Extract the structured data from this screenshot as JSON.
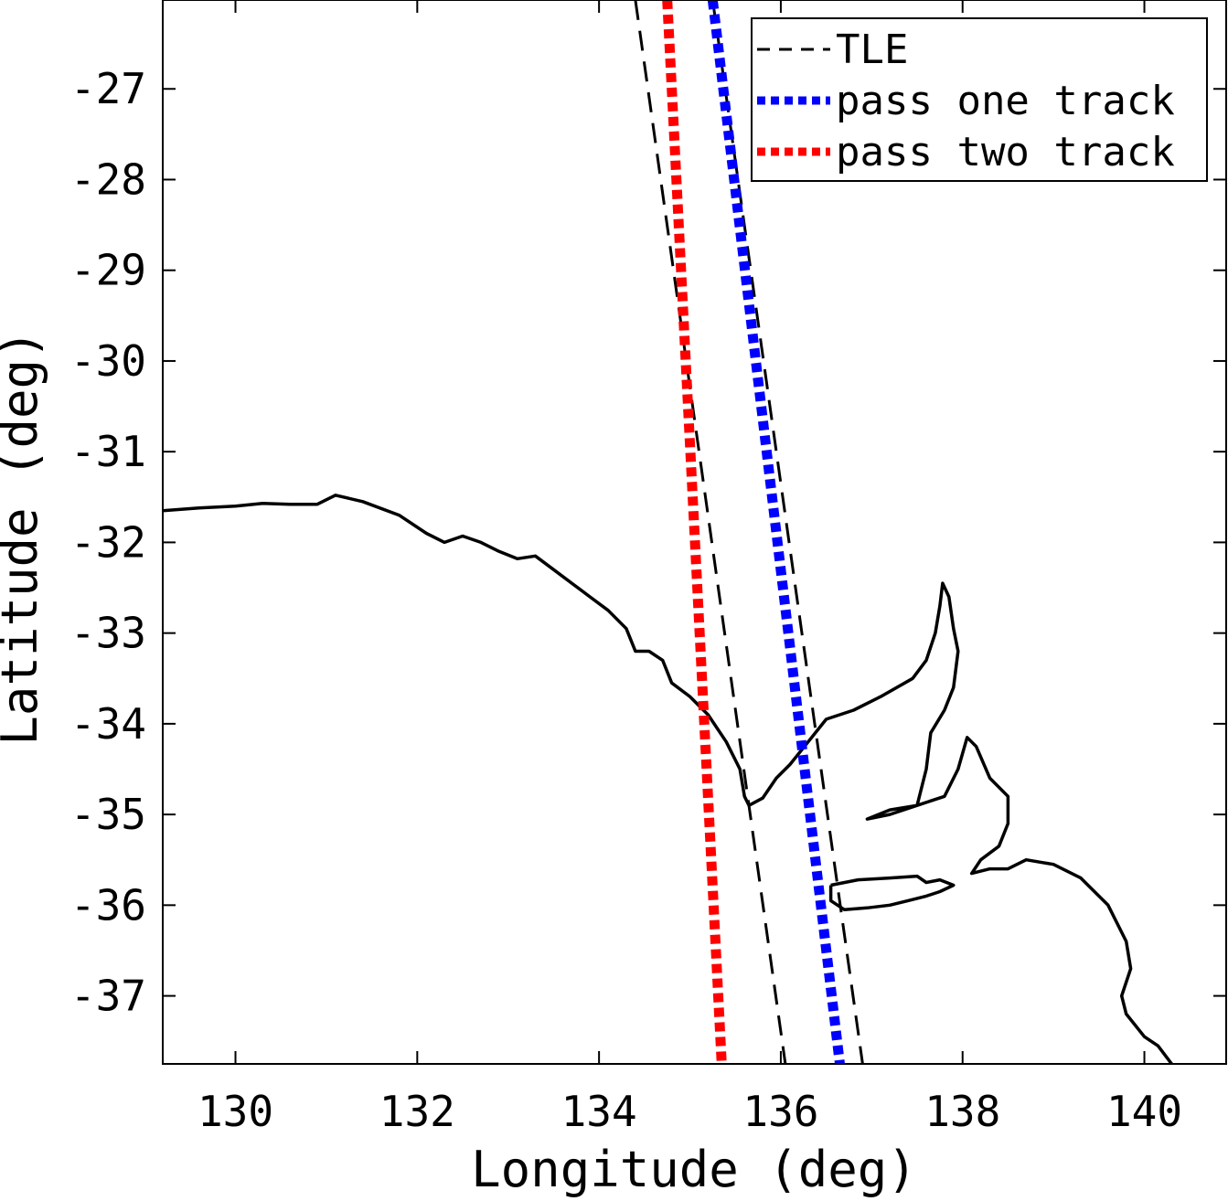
{
  "chart_data": {
    "type": "line",
    "title": "",
    "xlabel": "Longitude (deg)",
    "ylabel": "Latitude (deg)",
    "xlim": [
      129.2,
      140.9
    ],
    "ylim": [
      -37.75,
      -26.02
    ],
    "xticks": [
      130,
      132,
      134,
      136,
      138,
      140
    ],
    "xtick_labels": [
      "130",
      "132",
      "134",
      "136",
      "138",
      "140"
    ],
    "yticks": [
      -27,
      -28,
      -29,
      -30,
      -31,
      -32,
      -33,
      -34,
      -35,
      -36,
      -37
    ],
    "ytick_labels": [
      "-27",
      "-28",
      "-29",
      "-30",
      "-31",
      "-32",
      "-33",
      "-34",
      "-35",
      "-36",
      "-37"
    ],
    "grid": false,
    "legend_position": "top-right",
    "series": [
      {
        "name": "TLE",
        "color": "#000000",
        "style": "dashed",
        "x": [
          134.4,
          136.05
        ],
        "y": [
          -26.02,
          -37.75
        ]
      },
      {
        "name": "",
        "color": "#000000",
        "style": "dashed",
        "x": [
          135.25,
          136.9
        ],
        "y": [
          -26.02,
          -37.75
        ]
      },
      {
        "name": "pass one track",
        "color": "#0000ff",
        "style": "dotted",
        "x": [
          135.25,
          136.65
        ],
        "y": [
          -26.02,
          -37.75
        ]
      },
      {
        "name": "pass two track",
        "color": "#ff0000",
        "style": "dotted",
        "x": [
          134.75,
          135.35
        ],
        "y": [
          -26.02,
          -37.75
        ]
      }
    ],
    "coastline": {
      "name": "coastline",
      "color": "#000000",
      "mainland": [
        [
          129.2,
          -31.65
        ],
        [
          129.6,
          -31.62
        ],
        [
          130.0,
          -31.6
        ],
        [
          130.3,
          -31.57
        ],
        [
          130.6,
          -31.58
        ],
        [
          130.9,
          -31.58
        ],
        [
          131.1,
          -31.48
        ],
        [
          131.4,
          -31.55
        ],
        [
          131.8,
          -31.7
        ],
        [
          132.1,
          -31.9
        ],
        [
          132.3,
          -32.0
        ],
        [
          132.5,
          -31.93
        ],
        [
          132.7,
          -32.0
        ],
        [
          132.9,
          -32.1
        ],
        [
          133.1,
          -32.18
        ],
        [
          133.3,
          -32.15
        ],
        [
          133.5,
          -32.3
        ],
        [
          133.7,
          -32.45
        ],
        [
          133.9,
          -32.6
        ],
        [
          134.1,
          -32.75
        ],
        [
          134.3,
          -32.95
        ],
        [
          134.4,
          -33.2
        ],
        [
          134.55,
          -33.2
        ],
        [
          134.7,
          -33.3
        ],
        [
          134.8,
          -33.55
        ],
        [
          135.0,
          -33.7
        ],
        [
          135.2,
          -33.9
        ],
        [
          135.4,
          -34.2
        ],
        [
          135.55,
          -34.5
        ],
        [
          135.6,
          -34.8
        ],
        [
          135.65,
          -34.9
        ],
        [
          135.8,
          -34.82
        ],
        [
          135.95,
          -34.6
        ],
        [
          136.1,
          -34.45
        ],
        [
          136.3,
          -34.2
        ],
        [
          136.5,
          -33.95
        ],
        [
          136.8,
          -33.85
        ],
        [
          137.1,
          -33.7
        ],
        [
          137.45,
          -33.5
        ],
        [
          137.6,
          -33.3
        ],
        [
          137.7,
          -33.0
        ],
        [
          137.75,
          -32.7
        ],
        [
          137.78,
          -32.45
        ],
        [
          137.85,
          -32.6
        ],
        [
          137.9,
          -32.95
        ],
        [
          137.95,
          -33.2
        ],
        [
          137.9,
          -33.6
        ],
        [
          137.8,
          -33.85
        ],
        [
          137.65,
          -34.1
        ],
        [
          137.6,
          -34.5
        ],
        [
          137.5,
          -34.9
        ],
        [
          137.2,
          -34.95
        ],
        [
          136.95,
          -35.05
        ],
        [
          137.2,
          -35.0
        ],
        [
          137.5,
          -34.9
        ],
        [
          137.8,
          -34.8
        ],
        [
          137.95,
          -34.5
        ],
        [
          138.05,
          -34.15
        ],
        [
          138.15,
          -34.25
        ],
        [
          138.3,
          -34.6
        ],
        [
          138.5,
          -34.8
        ],
        [
          138.5,
          -35.1
        ],
        [
          138.4,
          -35.35
        ],
        [
          138.2,
          -35.5
        ],
        [
          138.1,
          -35.65
        ],
        [
          138.3,
          -35.6
        ],
        [
          138.5,
          -35.6
        ],
        [
          138.7,
          -35.5
        ],
        [
          139.0,
          -35.55
        ],
        [
          139.3,
          -35.7
        ],
        [
          139.6,
          -36.0
        ],
        [
          139.8,
          -36.4
        ],
        [
          139.85,
          -36.7
        ],
        [
          139.75,
          -37.0
        ],
        [
          139.8,
          -37.2
        ],
        [
          140.0,
          -37.45
        ],
        [
          140.15,
          -37.55
        ],
        [
          140.3,
          -37.75
        ]
      ],
      "kangaroo_island": [
        [
          136.55,
          -35.78
        ],
        [
          136.85,
          -35.72
        ],
        [
          137.2,
          -35.7
        ],
        [
          137.5,
          -35.68
        ],
        [
          137.6,
          -35.75
        ],
        [
          137.75,
          -35.72
        ],
        [
          137.9,
          -35.78
        ],
        [
          137.75,
          -35.85
        ],
        [
          137.6,
          -35.9
        ],
        [
          137.4,
          -35.95
        ],
        [
          137.2,
          -36.0
        ],
        [
          136.95,
          -36.03
        ],
        [
          136.7,
          -36.05
        ],
        [
          136.55,
          -35.95
        ],
        [
          136.55,
          -35.78
        ]
      ]
    },
    "legend": {
      "entries": [
        "TLE",
        "pass one track",
        "pass two track"
      ]
    }
  }
}
